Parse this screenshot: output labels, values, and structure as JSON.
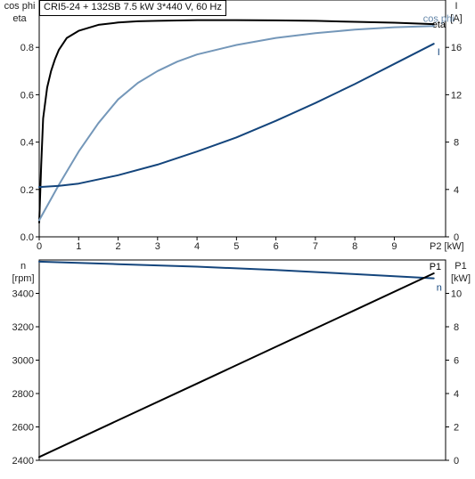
{
  "header": {
    "title": "CRI5-24 + 132SB   7.5 kW   3*440 V, 60 Hz"
  },
  "chart_data": [
    {
      "type": "line",
      "xlabel": "P2 [kW]",
      "xlim": [
        0,
        10.3
      ],
      "xticks": [
        0,
        1,
        2,
        3,
        4,
        5,
        6,
        7,
        8,
        9
      ],
      "left_axis": {
        "label_lines": [
          "cos phi",
          "eta"
        ],
        "lim": [
          0,
          1.0
        ],
        "ticks": [
          0.0,
          0.2,
          0.4,
          0.6,
          0.8
        ],
        "tick_labels": [
          "0.0",
          "0.2",
          "0.4",
          "0.6",
          "0.8"
        ]
      },
      "right_axis": {
        "label_lines": [
          "I",
          "[A]"
        ],
        "lim": [
          0,
          20
        ],
        "ticks": [
          0,
          4,
          8,
          12,
          16
        ],
        "tick_labels": [
          "0",
          "4",
          "8",
          "12",
          "16"
        ]
      },
      "grid": false,
      "series": [
        {
          "name": "eta",
          "axis": "left",
          "color": "#000000",
          "x": [
            0,
            0.05,
            0.1,
            0.2,
            0.3,
            0.4,
            0.5,
            0.7,
            1.0,
            1.5,
            2,
            2.5,
            3,
            4,
            5,
            6,
            7,
            8,
            9,
            10
          ],
          "y": [
            0.06,
            0.3,
            0.5,
            0.63,
            0.7,
            0.75,
            0.79,
            0.84,
            0.87,
            0.895,
            0.905,
            0.91,
            0.912,
            0.915,
            0.915,
            0.914,
            0.912,
            0.908,
            0.904,
            0.898
          ]
        },
        {
          "name": "cos phi",
          "axis": "left",
          "color": "#7497b9",
          "x": [
            0,
            0.5,
            1,
            1.5,
            2,
            2.5,
            3,
            3.5,
            4,
            5,
            6,
            7,
            8,
            9,
            10
          ],
          "y": [
            0.07,
            0.22,
            0.36,
            0.48,
            0.58,
            0.65,
            0.7,
            0.74,
            0.77,
            0.81,
            0.84,
            0.86,
            0.875,
            0.885,
            0.89
          ]
        },
        {
          "name": "I",
          "axis": "right",
          "color": "#14457c",
          "x": [
            0,
            0.5,
            1,
            2,
            3,
            4,
            5,
            6,
            7,
            8,
            9,
            10
          ],
          "y": [
            4.2,
            4.3,
            4.5,
            5.2,
            6.1,
            7.2,
            8.4,
            9.8,
            11.3,
            12.9,
            14.6,
            16.3
          ]
        }
      ]
    },
    {
      "type": "line",
      "xlim": [
        0,
        10.3
      ],
      "left_axis": {
        "label_lines": [
          "n",
          "[rpm]"
        ],
        "lim": [
          2400,
          3600
        ],
        "ticks": [
          2400,
          2600,
          2800,
          3000,
          3200,
          3400
        ],
        "tick_labels": [
          "2400",
          "2600",
          "2800",
          "3000",
          "3200",
          "3400"
        ]
      },
      "right_axis": {
        "label_lines": [
          "P1",
          "[kW]"
        ],
        "lim": [
          0,
          12
        ],
        "ticks": [
          0,
          2,
          4,
          6,
          8,
          10
        ],
        "tick_labels": [
          "0",
          "2",
          "4",
          "6",
          "8",
          "10"
        ]
      },
      "grid": false,
      "series": [
        {
          "name": "n",
          "axis": "left",
          "color": "#14457c",
          "x": [
            0,
            2,
            4,
            6,
            8,
            10
          ],
          "y": [
            3590,
            3575,
            3560,
            3540,
            3515,
            3490
          ]
        },
        {
          "name": "P1",
          "axis": "right",
          "color": "#000000",
          "x": [
            0,
            2,
            4,
            6,
            8,
            10
          ],
          "y": [
            0.2,
            2.4,
            4.6,
            6.8,
            9.0,
            11.2
          ]
        }
      ]
    }
  ]
}
